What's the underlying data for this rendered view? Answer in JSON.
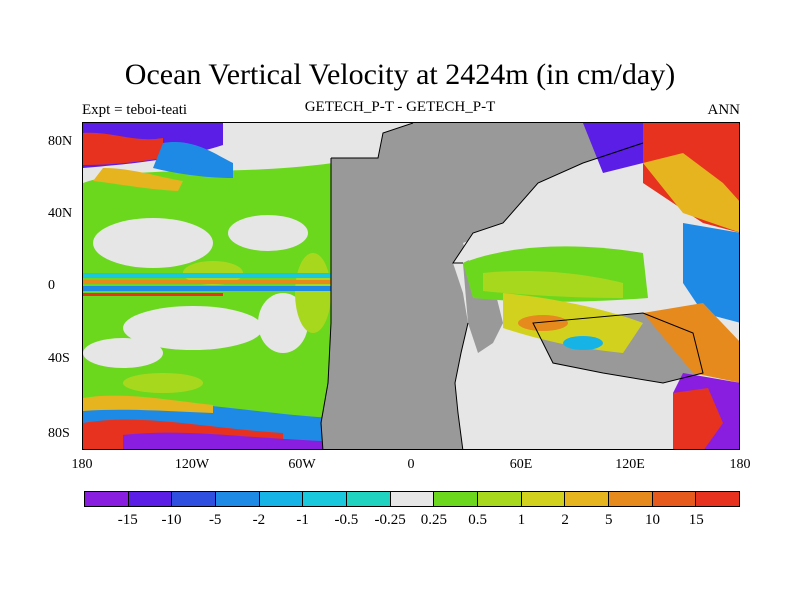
{
  "title": "Ocean Vertical Velocity at 2424m (in cm/day)",
  "subtitle_left": "Expt = teboi-teati",
  "subtitle_center": "GETECH_P-T - GETECH_P-T",
  "subtitle_right": "ANN",
  "lat_labels": [
    "80N",
    "40N",
    "0",
    "40S",
    "80S"
  ],
  "lon_labels": [
    "180",
    "120W",
    "60W",
    "0",
    "60E",
    "120E",
    "180"
  ],
  "colorbar": {
    "labels": [
      "-15",
      "-10",
      "-5",
      "-2",
      "-1",
      "-0.5",
      "-0.25",
      "0.25",
      "0.5",
      "1",
      "2",
      "5",
      "10",
      "15"
    ],
    "colors": [
      "#8a1ee0",
      "#5a1ee6",
      "#2f4fe0",
      "#1f8ae6",
      "#16b4e6",
      "#19c8dd",
      "#20d2c0",
      "#e6e6e6",
      "#6bd81e",
      "#a8d81e",
      "#d2d21e",
      "#e6b41e",
      "#e68a1e",
      "#e65a1e",
      "#e6321e"
    ]
  },
  "colors": {
    "land": "#999999",
    "ocean_neutral": "#e6e6e6",
    "coast": "#000000"
  }
}
